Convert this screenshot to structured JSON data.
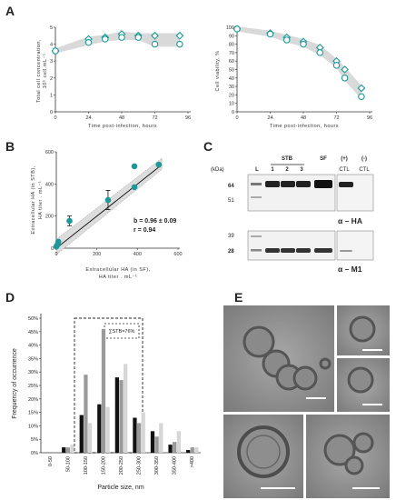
{
  "panels": {
    "A": "A",
    "B": "B",
    "C": "C",
    "D": "D",
    "E": "E"
  },
  "colors": {
    "teal": "#1a9a9a",
    "band": "#d9d9d9",
    "black": "#111111",
    "grey": "#9a9a9a",
    "light": "#d6d6d6"
  },
  "chart_data": [
    {
      "id": "A1",
      "type": "scatter",
      "ylabel_line1": "Total cell concentration,",
      "ylabel_line2": "10⁶ cell.mL⁻¹",
      "xlabel": "Time post-infection, hours",
      "xticks": [
        0,
        24,
        48,
        72,
        96
      ],
      "yticks": [
        0,
        1,
        2,
        3,
        4,
        5
      ],
      "xlim": [
        0,
        96
      ],
      "ylim": [
        0,
        5
      ],
      "series": [
        {
          "marker": "diamond",
          "x": [
            0,
            24,
            36,
            48,
            60,
            72,
            90
          ],
          "values": [
            3.6,
            4.3,
            4.4,
            4.6,
            4.5,
            4.5,
            4.5
          ]
        },
        {
          "marker": "circle",
          "x": [
            0,
            24,
            36,
            48,
            60,
            72,
            90
          ],
          "values": [
            3.6,
            4.1,
            4.3,
            4.4,
            4.4,
            4.0,
            4.0
          ]
        }
      ]
    },
    {
      "id": "A2",
      "type": "scatter",
      "ylabel": "Cell viability, %",
      "xlabel": "Time post-infection, hours",
      "xticks": [
        0,
        24,
        48,
        72,
        96
      ],
      "yticks": [
        0,
        10,
        20,
        30,
        40,
        50,
        60,
        70,
        80,
        90,
        100
      ],
      "xlim": [
        0,
        96
      ],
      "ylim": [
        0,
        100
      ],
      "series": [
        {
          "marker": "diamond",
          "x": [
            0,
            24,
            36,
            48,
            60,
            72,
            78,
            90
          ],
          "values": [
            98,
            93,
            88,
            83,
            76,
            60,
            50,
            28
          ]
        },
        {
          "marker": "circle",
          "x": [
            0,
            24,
            36,
            48,
            60,
            72,
            78,
            90
          ],
          "values": [
            98,
            92,
            85,
            80,
            70,
            55,
            40,
            18
          ]
        }
      ]
    },
    {
      "id": "B",
      "type": "scatter",
      "ylabel_line1": "Extracellular HA (in STB),",
      "ylabel_line2": "HA titer . mL⁻¹",
      "xlabel_line1": "Extracellular HA (in SF),",
      "xlabel_line2": "HA titer . mL⁻¹",
      "xticks": [
        0,
        200,
        400,
        600
      ],
      "yticks": [
        0,
        200,
        400,
        600
      ],
      "xlim": [
        0,
        600
      ],
      "ylim": [
        0,
        600
      ],
      "points": [
        {
          "x": 0,
          "y": 10
        },
        {
          "x": 5,
          "y": 20
        },
        {
          "x": 10,
          "y": 40
        },
        {
          "x": 65,
          "y": 170,
          "err": 30
        },
        {
          "x": 255,
          "y": 300,
          "err": 60
        },
        {
          "x": 385,
          "y": 380
        },
        {
          "x": 385,
          "y": 510
        },
        {
          "x": 505,
          "y": 520
        }
      ],
      "fit_slope": 0.96,
      "annotation_b": "b = 0.96 ± 0.09",
      "annotation_r": "r = 0.94"
    },
    {
      "id": "D",
      "type": "bar",
      "ylabel": "Frequency of occurrence",
      "xlabel": "Particle size, nm",
      "categories": [
        "0-50",
        "50-100",
        "100-150",
        "150-200",
        "200-250",
        "250-300",
        "300-350",
        "350-400",
        ">400"
      ],
      "yticks": [
        "0%",
        "5%",
        "10%",
        "15%",
        "20%",
        "25%",
        "30%",
        "35%",
        "40%",
        "45%",
        "50%"
      ],
      "ylim": [
        0,
        50
      ],
      "series": [
        {
          "color": "#111111",
          "values": [
            0,
            2,
            14,
            18,
            28,
            13,
            8,
            3,
            1
          ]
        },
        {
          "color": "#9a9a9a",
          "values": [
            0,
            2,
            29,
            46,
            27,
            11,
            6,
            4,
            2
          ]
        },
        {
          "color": "#d6d6d6",
          "values": [
            0,
            3,
            11,
            17,
            33,
            15,
            11,
            8,
            2
          ]
        }
      ],
      "annotation": "∑STB=76%"
    }
  ],
  "western_blot": {
    "kda_label": "(kDa)",
    "lane_labels": [
      "L",
      "1",
      "2",
      "3",
      "SF",
      "(+)",
      "(-)"
    ],
    "group_label": "STB",
    "ctl_labels": [
      "CTL",
      "CTL"
    ],
    "mw_top": [
      "64",
      "51"
    ],
    "mw_bottom": [
      "39",
      "28"
    ],
    "alpha_ha": "α – HA",
    "alpha_m1": "α – M1"
  }
}
